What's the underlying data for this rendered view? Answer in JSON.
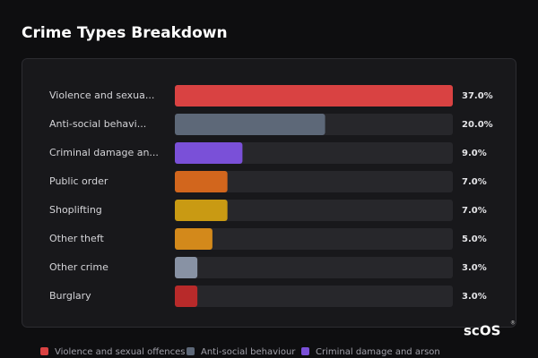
{
  "chart_data": {
    "type": "bar",
    "orientation": "horizontal",
    "title": "Crime Types Breakdown",
    "categories": [
      "Violence and sexua...",
      "Anti-social behavi...",
      "Criminal damage an...",
      "Public order",
      "Shoplifting",
      "Other theft",
      "Other crime",
      "Burglary"
    ],
    "values": [
      37,
      20,
      9,
      7,
      7,
      5,
      3,
      3
    ],
    "value_labels": [
      "37.0%",
      "20.0%",
      "9.0%",
      "7.0%",
      "7.0%",
      "5.0%",
      "3.0%",
      "3.0%"
    ],
    "colors": [
      "#d94242",
      "#5d6878",
      "#7a50d8",
      "#d2661d",
      "#c99a13",
      "#d3891b",
      "#8892a4",
      "#b82a2a"
    ],
    "legend": [
      {
        "name": "Violence and sexual offences",
        "color": "#d94242"
      },
      {
        "name": "Anti-social behaviour",
        "color": "#5d6878"
      },
      {
        "name": "Criminal damage and arson",
        "color": "#7a50d8"
      }
    ]
  },
  "watermark": "scOS",
  "watermark_mark": "®"
}
